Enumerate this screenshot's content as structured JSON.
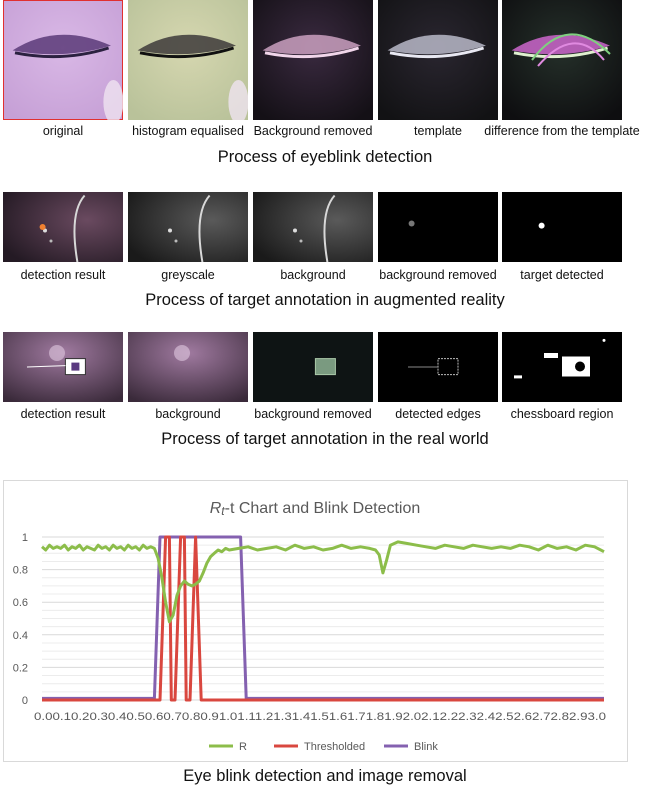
{
  "sections": [
    {
      "title": "Process of eyeblink detection",
      "panels": [
        {
          "caption": "original",
          "style": "eye-original"
        },
        {
          "caption": "histogram equalised",
          "style": "eye-histeq"
        },
        {
          "caption": "Background removed",
          "style": "eye-bgremoved"
        },
        {
          "caption": "template",
          "style": "eye-template"
        },
        {
          "caption": "difference from the template",
          "style": "eye-diff"
        }
      ]
    },
    {
      "title": "Process of target annotation in augmented reality",
      "panels": [
        {
          "caption": "detection result",
          "style": "ar-result"
        },
        {
          "caption": "greyscale",
          "style": "ar-grey"
        },
        {
          "caption": "background",
          "style": "ar-bg"
        },
        {
          "caption": "background removed",
          "style": "ar-bgremoved"
        },
        {
          "caption": "target detected",
          "style": "ar-target"
        }
      ]
    },
    {
      "title": "Process of target annotation in the real world",
      "panels": [
        {
          "caption": "detection result",
          "style": "rw-result"
        },
        {
          "caption": "background",
          "style": "rw-bg"
        },
        {
          "caption": "background removed",
          "style": "rw-bgremoved"
        },
        {
          "caption": "detected edges",
          "style": "rw-edges"
        },
        {
          "caption": "chessboard region",
          "style": "rw-chess"
        }
      ]
    }
  ],
  "figure_caption": "Eye blink detection and image removal",
  "chart_data": {
    "type": "line",
    "title_parts": {
      "R": "R",
      "sub": "t",
      "rest": "-t Chart and Blink Detection"
    },
    "ylim": [
      0,
      1
    ],
    "y_ticks": [
      "0",
      "0.2",
      "0.4",
      "0.6",
      "0.8",
      "1"
    ],
    "x_tick_labels_text": "0.00.10.20.30.40.50.60.70.80.91.01.11.21.31.41.51.61.71.81.92.02.12.22.32.42.52.62.72.82.93.0",
    "xlim": [
      0,
      3.0
    ],
    "legend": [
      "R",
      "Thresholded",
      "Blink"
    ],
    "colors": {
      "R": "#8cbd4a",
      "Thresholded": "#d9473f",
      "Blink": "#8461b0"
    },
    "series": [
      {
        "name": "R",
        "x": [
          0.0,
          0.02,
          0.04,
          0.06,
          0.08,
          0.1,
          0.12,
          0.14,
          0.16,
          0.18,
          0.2,
          0.22,
          0.24,
          0.26,
          0.28,
          0.3,
          0.32,
          0.34,
          0.36,
          0.38,
          0.4,
          0.42,
          0.44,
          0.46,
          0.48,
          0.5,
          0.52,
          0.54,
          0.56,
          0.58,
          0.6,
          0.62,
          0.64,
          0.66,
          0.68,
          0.7,
          0.72,
          0.74,
          0.76,
          0.78,
          0.8,
          0.82,
          0.84,
          0.86,
          0.88,
          0.9,
          0.92,
          0.94,
          0.96,
          0.98,
          1.0,
          1.05,
          1.1,
          1.15,
          1.2,
          1.25,
          1.3,
          1.35,
          1.4,
          1.45,
          1.5,
          1.55,
          1.6,
          1.65,
          1.7,
          1.75,
          1.78,
          1.8,
          1.82,
          1.84,
          1.86,
          1.9,
          1.95,
          2.0,
          2.05,
          2.1,
          2.15,
          2.2,
          2.25,
          2.3,
          2.35,
          2.4,
          2.45,
          2.5,
          2.55,
          2.6,
          2.65,
          2.7,
          2.75,
          2.8,
          2.85,
          2.9,
          2.95,
          3.0
        ],
        "y": [
          0.94,
          0.92,
          0.95,
          0.93,
          0.94,
          0.93,
          0.95,
          0.92,
          0.94,
          0.93,
          0.95,
          0.92,
          0.94,
          0.93,
          0.92,
          0.95,
          0.93,
          0.94,
          0.92,
          0.95,
          0.93,
          0.94,
          0.92,
          0.95,
          0.93,
          0.94,
          0.92,
          0.95,
          0.93,
          0.94,
          0.93,
          0.87,
          0.75,
          0.6,
          0.48,
          0.52,
          0.64,
          0.7,
          0.73,
          0.71,
          0.7,
          0.71,
          0.73,
          0.78,
          0.84,
          0.88,
          0.9,
          0.92,
          0.91,
          0.93,
          0.92,
          0.93,
          0.94,
          0.92,
          0.93,
          0.94,
          0.92,
          0.95,
          0.93,
          0.94,
          0.92,
          0.93,
          0.95,
          0.93,
          0.94,
          0.93,
          0.92,
          0.89,
          0.78,
          0.86,
          0.95,
          0.97,
          0.96,
          0.95,
          0.94,
          0.93,
          0.95,
          0.94,
          0.93,
          0.95,
          0.94,
          0.93,
          0.94,
          0.93,
          0.95,
          0.94,
          0.92,
          0.95,
          0.93,
          0.94,
          0.92,
          0.95,
          0.94,
          0.91
        ]
      },
      {
        "name": "Thresholded",
        "x": [
          0.0,
          0.63,
          0.66,
          0.68,
          0.69,
          0.71,
          0.74,
          0.76,
          0.77,
          0.79,
          0.82,
          0.85,
          1.0,
          3.0
        ],
        "y": [
          0,
          0,
          1,
          1,
          0,
          0,
          1,
          1,
          0,
          0,
          1,
          0,
          0,
          0
        ]
      },
      {
        "name": "Blink",
        "x": [
          0.0,
          0.6,
          0.63,
          1.06,
          1.09,
          3.0
        ],
        "y": [
          0.01,
          0.01,
          1,
          1,
          0.01,
          0.01
        ]
      }
    ]
  }
}
